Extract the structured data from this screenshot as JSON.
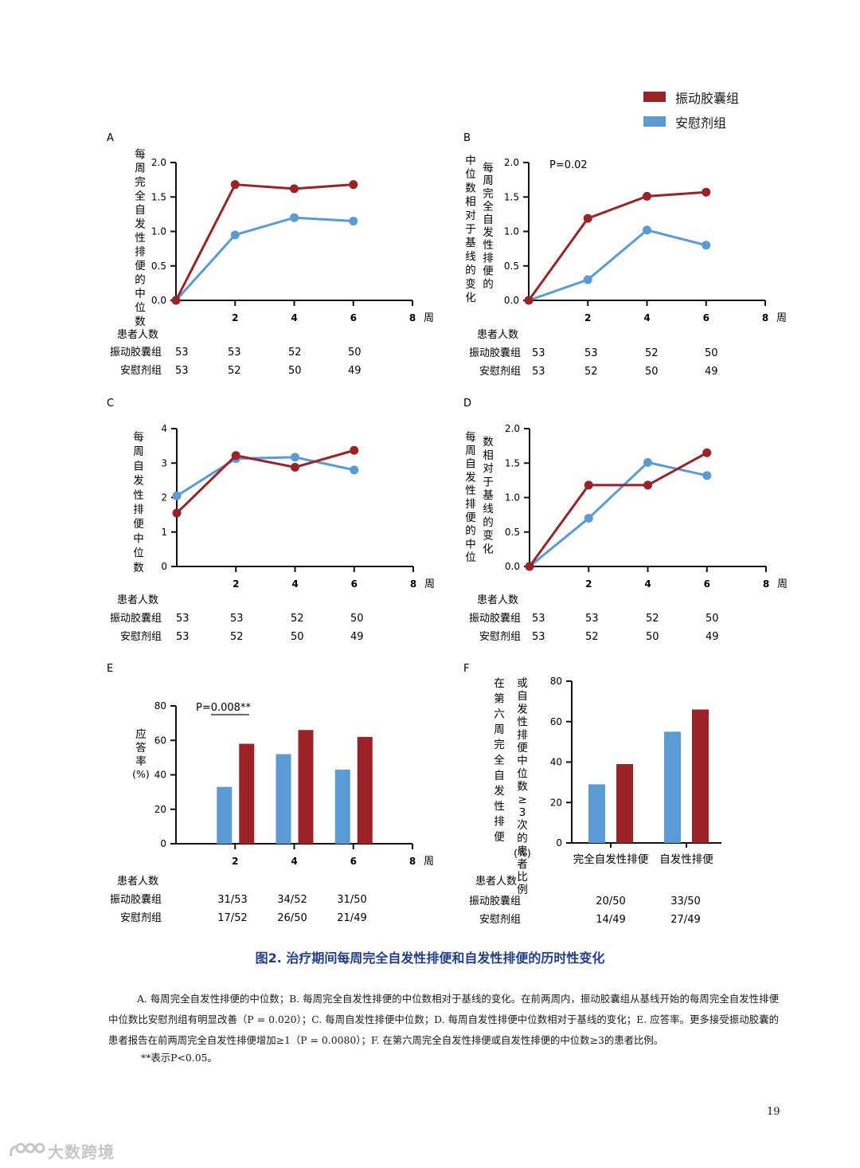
{
  "legend": [
    {
      "label": "振动胶囊组",
      "color": "#9b2226"
    },
    {
      "label": "安慰剂组",
      "color": "#5b9bd5"
    }
  ],
  "colors": {
    "treatment": "#9b2226",
    "placebo": "#5b9bd5"
  },
  "chart_data": [
    {
      "panel": "A",
      "type": "line",
      "ylabel": "每周完全自发性排便的中位数",
      "xunit": "周",
      "xticks": [
        2,
        4,
        6,
        8
      ],
      "yticks": [
        "0.0",
        "0.5",
        "1.0",
        "1.5",
        "2.0"
      ],
      "ylim": [
        0,
        2
      ],
      "xlim": [
        0,
        8
      ],
      "series": [
        {
          "name": "振动胶囊组",
          "x": [
            0,
            2,
            4,
            6
          ],
          "y": [
            0.0,
            1.68,
            1.62,
            1.68
          ]
        },
        {
          "name": "安慰剂组",
          "x": [
            0,
            2,
            4,
            6
          ],
          "y": [
            0.0,
            0.95,
            1.2,
            1.15
          ]
        }
      ],
      "n_table": {
        "title": "患者人数",
        "rows": [
          {
            "label": "振动胶囊组",
            "values": [
              "53",
              "53",
              "52",
              "50"
            ]
          },
          {
            "label": "安慰剂组",
            "values": [
              "53",
              "52",
              "50",
              "49"
            ]
          }
        ]
      }
    },
    {
      "panel": "B",
      "type": "line",
      "ylabel": "每周完全自发性排便的中位数相对于基线的变化",
      "annotation": "P=0.02",
      "xunit": "周",
      "xticks": [
        2,
        4,
        6,
        8
      ],
      "yticks": [
        "0.0",
        "0.5",
        "1.0",
        "1.5",
        "2.0"
      ],
      "ylim": [
        0,
        2
      ],
      "xlim": [
        0,
        8
      ],
      "series": [
        {
          "name": "振动胶囊组",
          "x": [
            0,
            2,
            4,
            6
          ],
          "y": [
            0.0,
            1.19,
            1.51,
            1.57
          ]
        },
        {
          "name": "安慰剂组",
          "x": [
            0,
            2,
            4,
            6
          ],
          "y": [
            0.0,
            0.3,
            1.02,
            0.8
          ]
        }
      ],
      "n_table": {
        "title": "患者人数",
        "rows": [
          {
            "label": "振动胶囊组",
            "values": [
              "53",
              "53",
              "52",
              "50"
            ]
          },
          {
            "label": "安慰剂组",
            "values": [
              "53",
              "52",
              "50",
              "49"
            ]
          }
        ]
      }
    },
    {
      "panel": "C",
      "type": "line",
      "ylabel": "每周自发性排便中位数",
      "xunit": "周",
      "xticks": [
        2,
        4,
        6,
        8
      ],
      "yticks": [
        "0",
        "1",
        "2",
        "3",
        "4"
      ],
      "ylim": [
        0,
        4
      ],
      "xlim": [
        0,
        8
      ],
      "series": [
        {
          "name": "振动胶囊组",
          "x": [
            0,
            2,
            4,
            6
          ],
          "y": [
            1.55,
            3.22,
            2.88,
            3.37
          ]
        },
        {
          "name": "安慰剂组",
          "x": [
            0,
            2,
            4,
            6
          ],
          "y": [
            2.05,
            3.13,
            3.17,
            2.8
          ]
        }
      ],
      "n_table": {
        "title": "患者人数",
        "rows": [
          {
            "label": "振动胶囊组",
            "values": [
              "53",
              "53",
              "52",
              "50"
            ]
          },
          {
            "label": "安慰剂组",
            "values": [
              "53",
              "52",
              "50",
              "49"
            ]
          }
        ]
      }
    },
    {
      "panel": "D",
      "type": "line",
      "ylabel": "每周自发性排便的中位数相对于基线的变化",
      "xunit": "周",
      "xticks": [
        2,
        4,
        6,
        8
      ],
      "yticks": [
        "0.0",
        "0.5",
        "1.0",
        "1.5",
        "2.0"
      ],
      "ylim": [
        0,
        2
      ],
      "xlim": [
        0,
        8
      ],
      "series": [
        {
          "name": "振动胶囊组",
          "x": [
            0,
            2,
            4,
            6
          ],
          "y": [
            0.0,
            1.18,
            1.18,
            1.65
          ]
        },
        {
          "name": "安慰剂组",
          "x": [
            0,
            2,
            4,
            6
          ],
          "y": [
            0.0,
            0.7,
            1.51,
            1.32
          ]
        }
      ],
      "n_table": {
        "title": "患者人数",
        "rows": [
          {
            "label": "振动胶囊组",
            "values": [
              "53",
              "53",
              "52",
              "50"
            ]
          },
          {
            "label": "安慰剂组",
            "values": [
              "53",
              "52",
              "50",
              "49"
            ]
          }
        ]
      }
    },
    {
      "panel": "E",
      "type": "bar",
      "ylabel": "应答率",
      "yunit": "(%)",
      "annotation": "P=0.008**",
      "xunit": "周",
      "xticks": [
        2,
        4,
        6,
        8
      ],
      "yticks": [
        "0",
        "20",
        "40",
        "60",
        "80"
      ],
      "ylim": [
        0,
        80
      ],
      "categories": [
        2,
        4,
        6
      ],
      "series": [
        {
          "name": "安慰剂组",
          "values": [
            33,
            52,
            43
          ]
        },
        {
          "name": "振动胶囊组",
          "values": [
            58,
            66,
            62
          ]
        }
      ],
      "n_table": {
        "title": "患者人数",
        "rows": [
          {
            "label": "振动胶囊组",
            "values": [
              "31/53",
              "34/52",
              "31/50"
            ]
          },
          {
            "label": "安慰剂组",
            "values": [
              "17/52",
              "26/50",
              "21/49"
            ]
          }
        ]
      }
    },
    {
      "panel": "F",
      "type": "bar",
      "ylabel": "在第六周完全自发性排便或自发性排便中位数≥3次的患者比例",
      "yunit": "(%)",
      "yticks": [
        "0",
        "20",
        "40",
        "60",
        "80"
      ],
      "ylim": [
        0,
        80
      ],
      "categories": [
        "完全自发性排便",
        "自发性排便"
      ],
      "series": [
        {
          "name": "安慰剂组",
          "values": [
            29,
            55
          ]
        },
        {
          "name": "振动胶囊组",
          "values": [
            39,
            66
          ]
        }
      ],
      "n_table": {
        "title": "患者人数",
        "rows": [
          {
            "label": "振动胶囊组",
            "values": [
              "20/50",
              "33/50"
            ]
          },
          {
            "label": "安慰剂组",
            "values": [
              "14/49",
              "27/49"
            ]
          }
        ]
      }
    }
  ],
  "figure_title": "图2. 治疗期间每周完全自发性排便和自发性排便的历时性变化",
  "caption": "A. 每周完全自发性排便的中位数；B. 每周完全自发性排便的中位数相对于基线的变化。在前两周内，振动胶囊组从基线开始的每周完全自发性排便中位数比安慰剂组有明显改善（P = 0.020）；C. 每周自发性排便中位数；D. 每周自发性排便中位数相对于基线的变化；E. 应答率。更多接受振动胶囊的患者报告在前两周完全自发性排便增加≥1（P = 0.0080）；F. 在第六周完全自发性排便或自发性排便的中位数≥3的患者比例。",
  "footnote": "**表示P<0.05。",
  "page_number": "19",
  "watermark": "大数跨境"
}
